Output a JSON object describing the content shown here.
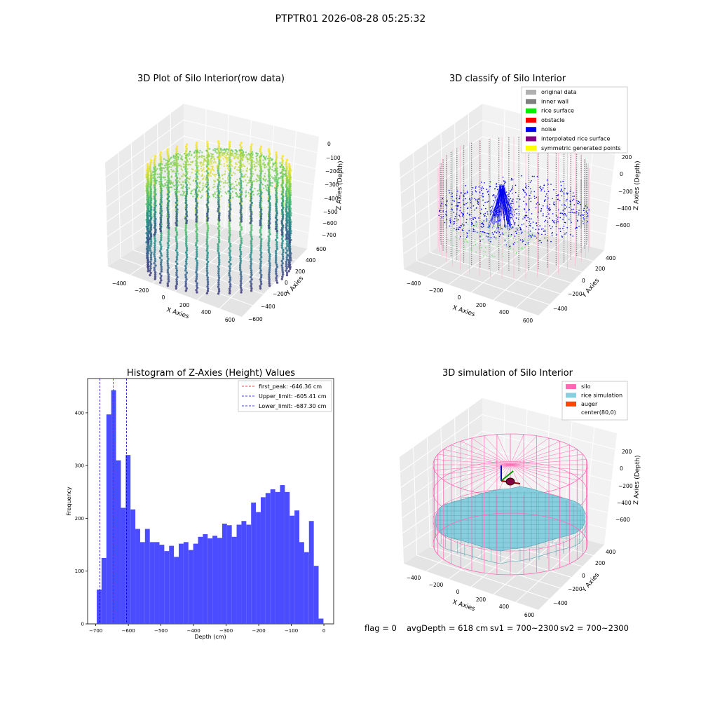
{
  "suptitle": "PTPTR01 2026-08-28 05:25:32",
  "colors": {
    "pane_left": "#ebebeb",
    "pane_right": "#f2f2f2",
    "pane_floor": "#e4e4e4",
    "grid": "#ffffff",
    "hist_bar": "#4b4bff",
    "peak_line": "#ff0000",
    "limit_line": "#0000cc",
    "silo": "#ff69b4",
    "rice": "#87cedf"
  },
  "chart_data": [
    {
      "type": "scatter3d",
      "title": "3D Plot of Silo Interior(row data)",
      "xlabel": "X Axies",
      "ylabel": "Y Axies",
      "zlabel": "Z Axies (Depth)",
      "x_ticks": [
        "−400",
        "−200",
        "0",
        "200",
        "400",
        "600"
      ],
      "y_ticks": [
        "−600",
        "−400",
        "−200",
        "0",
        "200",
        "400",
        "600"
      ],
      "z_ticks": [
        "0",
        "−100",
        "−200",
        "−300",
        "−400",
        "−500",
        "−600",
        "−700"
      ],
      "colormap": "viridis",
      "xlim": [
        -500,
        650
      ],
      "ylim": [
        -650,
        650
      ],
      "zlim": [
        -750,
        30
      ]
    },
    {
      "type": "scatter3d",
      "title": "3D classify of Silo Interior",
      "xlabel": "X Axies",
      "ylabel": "Y Axies",
      "zlabel": "Z Axies (Depth)",
      "x_ticks": [
        "−400",
        "−200",
        "0",
        "200",
        "400",
        "600"
      ],
      "y_ticks": [
        "−400",
        "−200",
        "0",
        "200",
        "400"
      ],
      "z_ticks": [
        "200",
        "0",
        "−200",
        "−400",
        "−600"
      ],
      "legend_position": "top-right",
      "legend": [
        {
          "label": "original data",
          "color": "#b0b0b0"
        },
        {
          "label": "inner wall",
          "color": "#808080"
        },
        {
          "label": "rice surface",
          "color": "#00ee00"
        },
        {
          "label": "obstacle",
          "color": "#ff0000"
        },
        {
          "label": "noise",
          "color": "#0000ee"
        },
        {
          "label": "interpolated rice surface",
          "color": "#800080"
        },
        {
          "label": "symmetric generated points",
          "color": "#ffff00"
        }
      ]
    },
    {
      "type": "bar",
      "title": "Histogram of Z-Axies (Height) Values",
      "xlabel": "Depth (cm)",
      "ylabel": "Frequency",
      "xlim": [
        -725,
        30
      ],
      "ylim": [
        0,
        465
      ],
      "x_ticks": [
        -700,
        -600,
        -500,
        -400,
        -300,
        -200,
        -100,
        0
      ],
      "x_tick_labels": [
        "−700",
        "−600",
        "−500",
        "−400",
        "−300",
        "−200",
        "−100",
        "0"
      ],
      "y_ticks": [
        0,
        100,
        200,
        300,
        400
      ],
      "y_tick_labels": [
        "0",
        "100",
        "200",
        "300",
        "400"
      ],
      "bin_start": -697,
      "bin_width": 14.8,
      "values": [
        65,
        125,
        397,
        443,
        310,
        220,
        320,
        217,
        180,
        155,
        180,
        155,
        155,
        150,
        138,
        148,
        127,
        152,
        155,
        140,
        152,
        165,
        170,
        162,
        167,
        163,
        190,
        187,
        165,
        188,
        195,
        188,
        230,
        212,
        240,
        248,
        255,
        250,
        263,
        250,
        205,
        215,
        155,
        136,
        195,
        110,
        10
      ],
      "vlines": [
        {
          "x": -646.36,
          "kind": "peak",
          "label": "first_peak: -646.36 cm"
        },
        {
          "x": -605.41,
          "kind": "limit",
          "label": "Upper_limit: -605.41 cm"
        },
        {
          "x": -687.3,
          "kind": "limit",
          "label": "Lower_limit: -687.30 cm"
        }
      ],
      "legend_position": "top-right"
    },
    {
      "type": "surface3d",
      "title": "3D simulation of Silo Interior",
      "xlabel": "X Axies",
      "ylabel": "Y Axies",
      "zlabel": "Z Axies (Depth)",
      "x_ticks": [
        "−400",
        "−200",
        "0",
        "200",
        "400",
        "600"
      ],
      "y_ticks": [
        "−400",
        "−200",
        "0",
        "200",
        "400"
      ],
      "z_ticks": [
        "200",
        "0",
        "−200",
        "−400",
        "−600"
      ],
      "legend_position": "top-right",
      "legend": [
        {
          "label": "silo",
          "color": "#ff69b4"
        },
        {
          "label": "rice simulation",
          "color": "#87cedf"
        },
        {
          "label": "auger",
          "color": "#ff4500"
        },
        {
          "label": "center(80,0)",
          "color": "#ffffff"
        }
      ]
    }
  ],
  "status": {
    "flag": "flag = 0",
    "avg_depth": "avgDepth = 618 cm",
    "sv1": "sv1 = 700~2300",
    "sv2": "sv2 = 700~2300"
  }
}
